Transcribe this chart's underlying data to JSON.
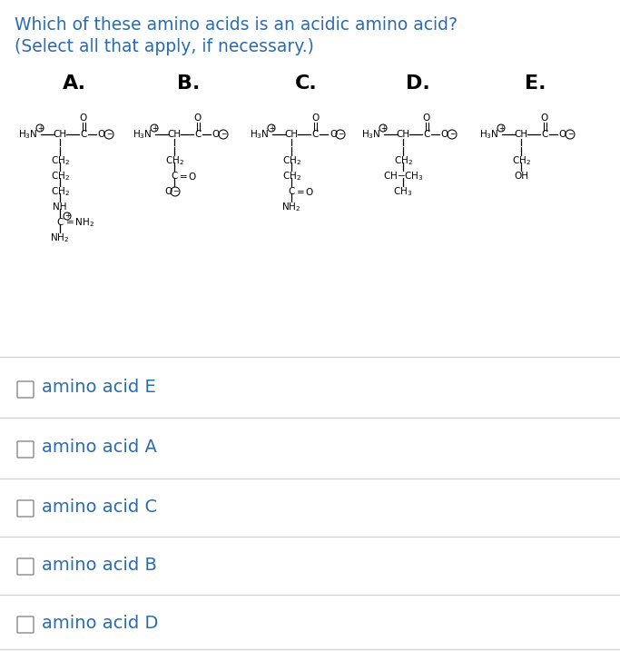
{
  "title_line1": "Which of these amino acids is an acidic amino acid?",
  "title_line2": "(Select all that apply, if necessary.)",
  "bg_color": "#ffffff",
  "text_color": "#000000",
  "title_color": "#2b6cb0",
  "choice_color": "#2b6cb0",
  "labels": [
    "A.",
    "B.",
    "C.",
    "D.",
    "E."
  ],
  "choices": [
    "amino acid E",
    "amino acid A",
    "amino acid C",
    "amino acid B",
    "amino acid D"
  ],
  "divider_color": "#d0d0d0",
  "struct_font_size": 7.5,
  "label_font_size": 16,
  "title_font_size": 13.5,
  "choice_font_size": 14,
  "fig_width": 6.83,
  "fig_height": 7.17,
  "dpi": 100
}
